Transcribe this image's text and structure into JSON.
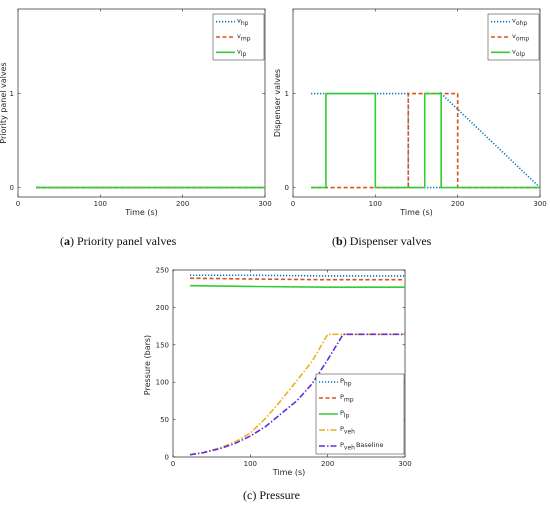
{
  "captions": [
    {
      "letter": "a",
      "text": "Priority panel valves"
    },
    {
      "letter": "b",
      "text": "Dispenser valves"
    },
    {
      "letter": "c",
      "text": "Pressure"
    }
  ],
  "chart_data": [
    {
      "type": "line",
      "id": "a",
      "xlabel": "Time (s)",
      "ylabel": "Priority panel valves",
      "xlim": [
        0,
        300
      ],
      "ylim": [
        -0.1,
        1.9
      ],
      "xticks": [
        0,
        100,
        200,
        300
      ],
      "yticks": [
        0,
        1
      ],
      "grid": false,
      "legend_position": "top-right",
      "series": [
        {
          "name": "v_hp",
          "base": "v",
          "sub": "hp",
          "color": "#0072BD",
          "dash": "1.2,1.8",
          "x": [
            22,
            300
          ],
          "y": [
            0,
            0
          ]
        },
        {
          "name": "v_mp",
          "base": "v",
          "sub": "mp",
          "color": "#D95319",
          "dash": "4,2.5",
          "x": [
            22,
            300
          ],
          "y": [
            0,
            0
          ]
        },
        {
          "name": "v_lp",
          "base": "v",
          "sub": "lp",
          "color": "#33CC33",
          "dash": "",
          "x": [
            22,
            300
          ],
          "y": [
            0,
            0
          ]
        }
      ]
    },
    {
      "type": "line",
      "id": "b",
      "xlabel": "Time (s)",
      "ylabel": "Dispenser valves",
      "xlim": [
        0,
        300
      ],
      "ylim": [
        -0.1,
        1.9
      ],
      "xticks": [
        0,
        100,
        200,
        300
      ],
      "yticks": [
        0,
        1
      ],
      "grid": false,
      "legend_position": "top-right",
      "series": [
        {
          "name": "v_ohp",
          "base": "v",
          "sub": "ohp",
          "color": "#0072BD",
          "dash": "1.2,1.8",
          "x": [
            22,
            140,
            140,
            180,
            180,
            300
          ],
          "y": [
            1,
            1,
            0,
            0,
            1,
            0
          ]
        },
        {
          "name": "v_omp",
          "base": "v",
          "sub": "omp",
          "color": "#D95319",
          "dash": "4,2.5",
          "x": [
            22,
            140,
            140,
            200,
            200,
            300
          ],
          "y": [
            0,
            0,
            1,
            1,
            0,
            0
          ]
        },
        {
          "name": "v_olp",
          "base": "v",
          "sub": "olp",
          "color": "#33CC33",
          "dash": "",
          "x": [
            22,
            40,
            40,
            100,
            100,
            160,
            160,
            180,
            180,
            300
          ],
          "y": [
            0,
            0,
            1,
            1,
            0,
            0,
            1,
            1,
            0,
            0
          ]
        }
      ]
    },
    {
      "type": "line",
      "id": "c",
      "xlabel": "Time (s)",
      "ylabel": "Pressure (bars)",
      "xlim": [
        0,
        300
      ],
      "ylim": [
        0,
        250
      ],
      "xticks": [
        0,
        100,
        200,
        300
      ],
      "yticks": [
        0,
        50,
        100,
        150,
        200,
        250
      ],
      "grid": false,
      "legend_position": "bottom-right",
      "series": [
        {
          "name": "P_hp",
          "base": "P",
          "sub": "hp",
          "suffix": "",
          "color": "#0072BD",
          "dash": "1.2,1.8",
          "x": [
            22,
            100,
            200,
            300
          ],
          "y": [
            243,
            243,
            242,
            242
          ]
        },
        {
          "name": "P_mp",
          "base": "P",
          "sub": "mp",
          "suffix": "",
          "color": "#D95319",
          "dash": "4,2.5",
          "x": [
            22,
            100,
            200,
            300
          ],
          "y": [
            239,
            238,
            237,
            237
          ]
        },
        {
          "name": "P_lp",
          "base": "P",
          "sub": "lp",
          "suffix": "",
          "color": "#33CC33",
          "dash": "",
          "x": [
            22,
            100,
            200,
            300
          ],
          "y": [
            229,
            228,
            227,
            227
          ]
        },
        {
          "name": "P_veh",
          "base": "P",
          "sub": "veh",
          "suffix": "",
          "color": "#EDB120",
          "dash": "6,2,1.5,2",
          "x": [
            22,
            40,
            60,
            80,
            100,
            120,
            140,
            160,
            180,
            200,
            300
          ],
          "y": [
            3,
            6,
            12,
            20,
            32,
            52,
            76,
            102,
            128,
            164,
            164
          ]
        },
        {
          "name": "P_veh Baseline",
          "base": "P",
          "sub": "veh",
          "suffix": "Baseline",
          "color": "#5E2DDB",
          "dash": "6,2,1.5,2",
          "x": [
            22,
            40,
            60,
            80,
            100,
            120,
            140,
            160,
            180,
            200,
            220,
            300
          ],
          "y": [
            3,
            6,
            11,
            18,
            28,
            41,
            58,
            75,
            98,
            130,
            164,
            164
          ]
        }
      ]
    }
  ]
}
